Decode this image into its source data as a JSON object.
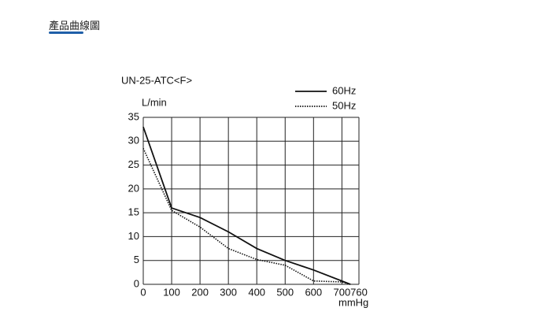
{
  "header": {
    "title": "產品曲線圖"
  },
  "chart_data": {
    "type": "line",
    "title": "UN-25-ATC<F>",
    "y_label": "L/min",
    "x_label": "mmHg",
    "xlim": [
      0,
      760
    ],
    "xticks": [
      0,
      100,
      200,
      300,
      400,
      500,
      600,
      700,
      760
    ],
    "ylim": [
      0,
      35
    ],
    "yticks": [
      0,
      5,
      10,
      15,
      20,
      25,
      30,
      35
    ],
    "grid": true,
    "series": [
      {
        "name": "60Hz",
        "color": "#111111",
        "style": "solid",
        "x": [
          0,
          100,
          200,
          300,
          400,
          500,
          600,
          730
        ],
        "values": [
          33,
          16,
          14,
          11,
          7.5,
          5,
          3,
          0
        ]
      },
      {
        "name": "50Hz",
        "color": "#111111",
        "style": "dotted",
        "x": [
          0,
          100,
          200,
          300,
          400,
          500,
          600,
          700,
          730
        ],
        "values": [
          28.5,
          15.5,
          12,
          7.5,
          5.2,
          4,
          0.7,
          0.5,
          0
        ]
      }
    ]
  }
}
